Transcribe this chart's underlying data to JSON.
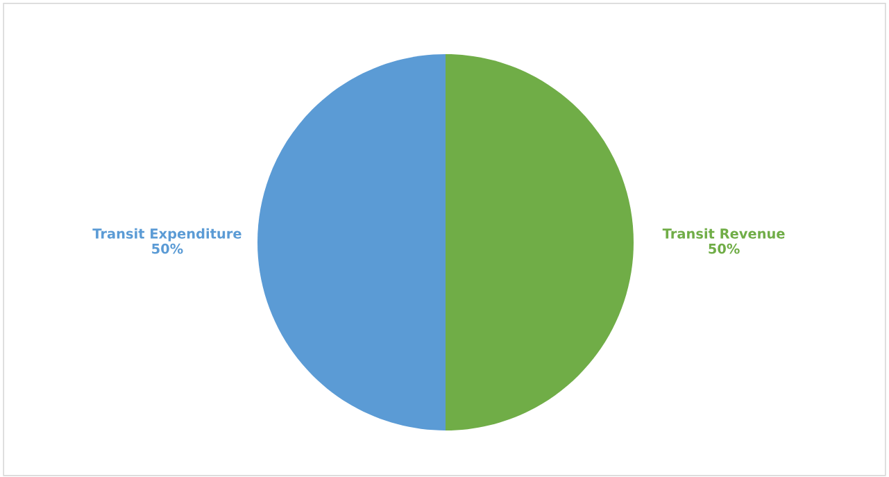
{
  "chart_data": {
    "type": "pie",
    "categories": [
      "Transit Revenue",
      "Transit Expenditure"
    ],
    "values": [
      50,
      50
    ],
    "colors": [
      "#70ad47",
      "#5b9bd5"
    ],
    "value_labels": [
      "50%",
      "50%"
    ]
  }
}
